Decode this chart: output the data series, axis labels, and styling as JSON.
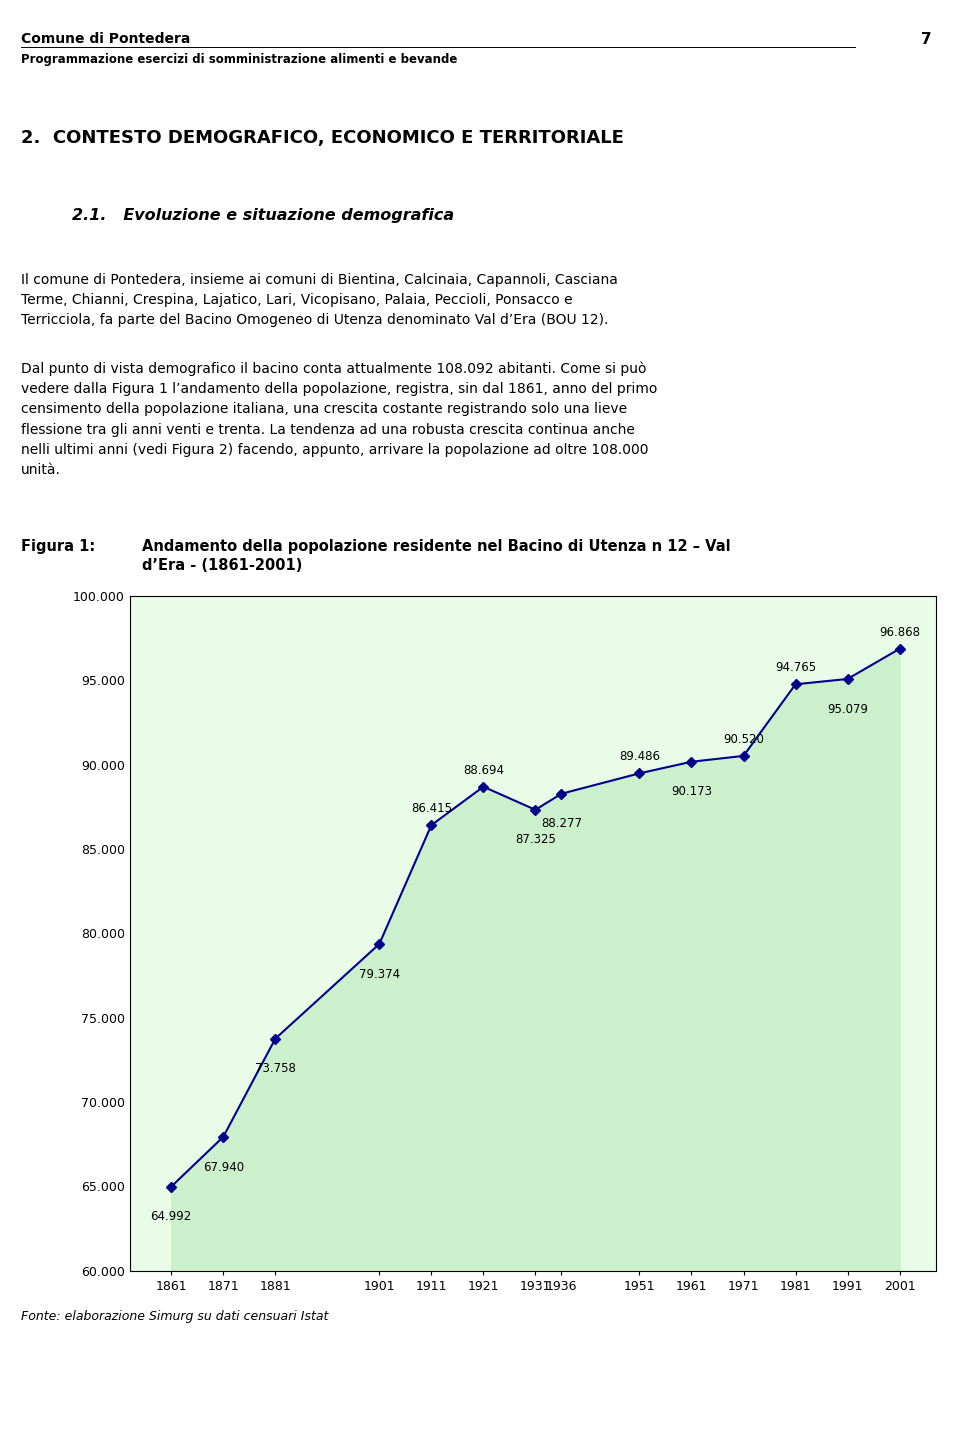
{
  "header_title": "Comune di Pontedera",
  "header_subtitle": "Programmazione esercizi di somministrazione alimenti e bevande",
  "page_number": "7",
  "section_title": "2.  CONTESTO DEMOGRAFICO, ECONOMICO E TERRITORIALE",
  "subsection_title": "2.1.   Evoluzione e situazione demografica",
  "body_paragraph1": "Il comune di Pontedera, insieme ai comuni di Bientina, Calcinaia, Capannoli, Casciana\nTerme, Chianni, Crespina, Lajatico, Lari, Vicopisano, Palaia, Peccioli, Ponsacco e\nTerricciola, fa parte del Bacino Omogeneo di Utenza denominato Val d’Era (BOU 12).",
  "body_paragraph2": "Dal punto di vista demografico il bacino conta attualmente 108.092 abitanti. Come si può\nvedere dalla Figura 1 l’andamento della popolazione, registra, sin dal 1861, anno del primo\ncensimento della popolazione italiana, una crescita costante registrando solo una lieve\nflessione tra gli anni venti e trenta. La tendenza ad una robusta crescita continua anche\nnelli ultimi anni (vedi Figura 2) facendo, appunto, arrivare la popolazione ad oltre 108.000\nunità.",
  "figura_label": "Figura 1:",
  "figura_caption": "Andamento della popolazione residente nel Bacino di Utenza n 12 – Val\nd’Era - (1861-2001)",
  "fonte_text": "Fonte: elaborazione Simurg su dati censuari Istat",
  "years": [
    1861,
    1871,
    1881,
    1901,
    1911,
    1921,
    1931,
    1936,
    1951,
    1961,
    1971,
    1981,
    1991,
    2001
  ],
  "values": [
    64992,
    67940,
    73758,
    79374,
    86415,
    88694,
    87325,
    88277,
    89486,
    90173,
    90520,
    94765,
    95079,
    96868
  ],
  "value_labels": [
    "64.992",
    "67.940",
    "73.758",
    "79.374",
    "86.415",
    "88.694",
    "87.325",
    "88.277",
    "89.486",
    "90.173",
    "90.520",
    "94.765",
    "95.079",
    "96.868"
  ],
  "label_above": [
    false,
    false,
    false,
    false,
    true,
    true,
    false,
    false,
    true,
    false,
    true,
    true,
    false,
    true
  ],
  "ylim": [
    60000,
    100000
  ],
  "yticks": [
    60000,
    65000,
    70000,
    75000,
    80000,
    85000,
    90000,
    95000,
    100000
  ],
  "ytick_labels": [
    "60.000",
    "65.000",
    "70.000",
    "75.000",
    "80.000",
    "85.000",
    "90.000",
    "95.000",
    "100.000"
  ],
  "line_color": "#00008B",
  "marker_color": "#00008B",
  "fill_color": "#ccf0cc",
  "chart_bg": "#e8fce8",
  "border_color": "#000000"
}
